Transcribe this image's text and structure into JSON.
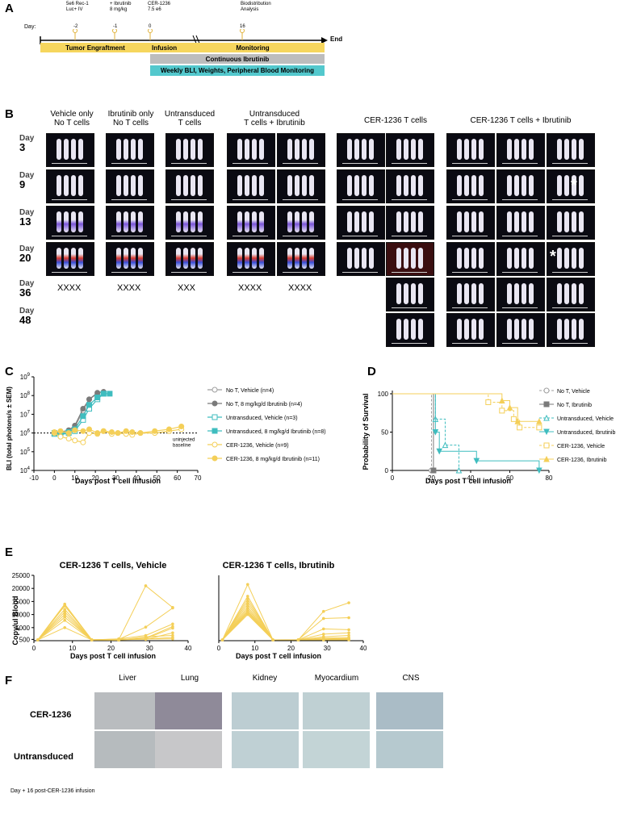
{
  "panels": {
    "a": "A",
    "b": "B",
    "c": "C",
    "d": "D",
    "e": "E",
    "f": "F"
  },
  "timeline": {
    "day_label": "Day:",
    "events": [
      {
        "text": "5e6 Rec-1\nLuc+ IV",
        "day": "-2"
      },
      {
        "text": "+ Ibrutinib\n8 mg/kg",
        "day": "-1"
      },
      {
        "text": "CER-1236\n7.5 e6",
        "day": "0"
      },
      {
        "text": "Biodistribution\nAnalysis",
        "day": "16"
      }
    ],
    "end_label": "End",
    "bars": {
      "engraftment": "Tumor Engraftment",
      "infusion": "Infusion",
      "monitoring": "Monitoring",
      "ibrutinib": "Continuous Ibrutinib",
      "weekly": "Weekly BLI, Weights, Peripheral Blood Monitoring"
    }
  },
  "bli_images": {
    "groups": [
      "Vehicle only\nNo T cells",
      "Ibrutinib only\nNo T cells",
      "Untransduced\nT cells",
      "Untransduced\nT cells + Ibrutinib",
      "CER-1236 T cells",
      "CER-1236 T cells + Ibrutinib"
    ],
    "day_word": "Day",
    "days": [
      "3",
      "9",
      "13",
      "20",
      "36",
      "48"
    ],
    "deaths": [
      "XXXX",
      "XXXX",
      "XXX",
      "XXXX",
      "XXXX"
    ],
    "asterisk": "*"
  },
  "panel_c": {
    "chart_data": {
      "type": "line",
      "xlabel": "Days post T cell infusion",
      "ylabel": "BLI (total photons/s ± SEM)",
      "x_ticks": [
        "-10",
        "0",
        "10",
        "20",
        "30",
        "40",
        "50",
        "60",
        "70"
      ],
      "y_ticks": [
        "10^4",
        "10^5",
        "10^6",
        "10^7",
        "10^8",
        "10^9"
      ],
      "xlim": [
        -10,
        70
      ],
      "ylim_log10": [
        4,
        9
      ],
      "baseline_label": "uninjected\nbaseline",
      "baseline_log10": 6.0,
      "series": [
        {
          "name": "No T, Vehicle (n=4)",
          "color": "#9e9e9e",
          "marker": "circle-open",
          "x": [
            0,
            3,
            7,
            10,
            14,
            17,
            21
          ],
          "y": [
            6.0,
            5.95,
            6.1,
            6.3,
            7.2,
            7.8,
            8.1
          ]
        },
        {
          "name": "No T, 8 mg/kg/d Ibrutinib (n=4)",
          "color": "#7a7a7a",
          "marker": "circle",
          "x": [
            0,
            3,
            7,
            10,
            14,
            17,
            21,
            24
          ],
          "y": [
            6.0,
            6.05,
            6.15,
            6.4,
            7.3,
            7.8,
            8.15,
            8.2
          ]
        },
        {
          "name": "Untransduced, Vehicle (n=3)",
          "color": "#3fbdbf",
          "marker": "square-open",
          "x": [
            0,
            3,
            7,
            10,
            14,
            17,
            21,
            24
          ],
          "y": [
            5.95,
            5.9,
            6.0,
            6.1,
            6.7,
            7.3,
            7.8,
            8.1
          ]
        },
        {
          "name": "Untransduced, 8 mg/kg/d Ibrutinib (n=8)",
          "color": "#3fbdbf",
          "marker": "square",
          "x": [
            0,
            3,
            7,
            10,
            14,
            17,
            21,
            24,
            27
          ],
          "y": [
            6.0,
            5.95,
            6.05,
            6.2,
            6.9,
            7.5,
            7.9,
            8.1,
            8.1
          ]
        },
        {
          "name": "CER-1236, Vehicle (n=9)",
          "color": "#f4cf58",
          "marker": "circle-open",
          "x": [
            0,
            3,
            7,
            10,
            14,
            17,
            21,
            24,
            28,
            31,
            35,
            38,
            42,
            49,
            56,
            62
          ],
          "y": [
            6.0,
            5.8,
            5.7,
            5.6,
            5.5,
            6.0,
            5.95,
            6.1,
            5.95,
            6.0,
            5.95,
            5.9,
            6.0,
            6.0,
            6.1,
            6.2
          ]
        },
        {
          "name": "CER-1236, 8 mg/kg/d Ibrutinib (n=11)",
          "color": "#f4cf58",
          "marker": "circle",
          "x": [
            0,
            3,
            7,
            10,
            14,
            17,
            21,
            24,
            28,
            31,
            35,
            38,
            42,
            49,
            56,
            62
          ],
          "y": [
            6.05,
            6.1,
            6.0,
            6.15,
            6.1,
            6.2,
            6.0,
            6.1,
            6.05,
            6.0,
            6.1,
            6.05,
            6.0,
            6.1,
            6.2,
            6.35
          ]
        }
      ]
    }
  },
  "panel_d": {
    "chart_data": {
      "type": "line",
      "xlabel": "Days post T cell infusion",
      "ylabel": "Probability of Survival",
      "x_ticks": [
        "0",
        "20",
        "40",
        "60",
        "80"
      ],
      "y_ticks": [
        "0",
        "50",
        "100"
      ],
      "xlim": [
        0,
        80
      ],
      "ylim": [
        0,
        100
      ],
      "series": [
        {
          "name": "No T, Vehicle",
          "color": "#9e9e9e",
          "marker": "circle-open",
          "dash": "3,2",
          "x": [
            0,
            20,
            20
          ],
          "y": [
            100,
            100,
            0
          ]
        },
        {
          "name": "No T, Ibrutinib",
          "color": "#7a7a7a",
          "marker": "square",
          "dash": "",
          "x": [
            0,
            21,
            21
          ],
          "y": [
            100,
            100,
            0
          ]
        },
        {
          "name": "Untransduced, Vehicle",
          "color": "#3fbdbf",
          "marker": "triangle-open",
          "dash": "3,2",
          "x": [
            0,
            22,
            22,
            27,
            27,
            34,
            34
          ],
          "y": [
            100,
            100,
            67,
            67,
            33,
            33,
            0
          ]
        },
        {
          "name": "Untransduced, Ibrutinib",
          "color": "#3fbdbf",
          "marker": "triangle-down",
          "dash": "",
          "x": [
            0,
            22,
            22,
            24,
            24,
            43,
            43,
            75,
            75
          ],
          "y": [
            100,
            100,
            50,
            50,
            25,
            25,
            12.5,
            12.5,
            0
          ]
        },
        {
          "name": "CER-1236, Vehicle",
          "color": "#f4cf58",
          "marker": "square-open",
          "dash": "3,2",
          "x": [
            0,
            49,
            49,
            56,
            56,
            62,
            62,
            65,
            65,
            75
          ],
          "y": [
            100,
            100,
            89,
            89,
            78,
            78,
            67,
            67,
            56,
            56
          ]
        },
        {
          "name": "CER-1236, Ibrutinib",
          "color": "#f4cf58",
          "marker": "triangle",
          "dash": "",
          "x": [
            0,
            56,
            56,
            60,
            60,
            64,
            64,
            75
          ],
          "y": [
            100,
            100,
            91,
            91,
            82,
            82,
            64,
            64
          ]
        }
      ]
    }
  },
  "panel_e": {
    "chart_data": [
      {
        "type": "line",
        "title": "CER-1236 T cells, Vehicle",
        "xlabel": "Days post T cell infusion",
        "ylabel": "Copy/ul Blood",
        "x_ticks": [
          "0",
          "10",
          "20",
          "30",
          "40"
        ],
        "y_ticks": [
          "500",
          "5000",
          "10000",
          "15000",
          "20000",
          "25000"
        ],
        "xlim": [
          0,
          40
        ],
        "ylim": [
          0,
          25000
        ],
        "x": [
          1,
          8,
          15,
          22,
          29,
          36
        ],
        "series": [
          {
            "values": [
              300,
              14000,
              400,
              300,
              21000,
              12700
            ]
          },
          {
            "values": [
              300,
              13300,
              350,
              500,
              5200,
              12500
            ]
          },
          {
            "values": [
              300,
              12000,
              300,
              700,
              2000,
              6400
            ]
          },
          {
            "values": [
              300,
              11000,
              300,
              400,
              1000,
              5400
            ]
          },
          {
            "values": [
              300,
              10000,
              250,
              300,
              800,
              4800
            ]
          },
          {
            "values": [
              300,
              9000,
              300,
              600,
              500,
              3000
            ]
          },
          {
            "values": [
              300,
              7800,
              300,
              200,
              1500,
              2000
            ]
          },
          {
            "values": [
              300,
              5000,
              300,
              300,
              600,
              700
            ]
          },
          {
            "values": [
              300,
              13800,
              350,
              400,
              700,
              1200
            ]
          }
        ]
      },
      {
        "type": "line",
        "title": "CER-1236 T cells, Ibrutinib",
        "xlabel": "Days post T cell infusion",
        "ylabel": "",
        "x_ticks": [
          "0",
          "10",
          "20",
          "30",
          "40"
        ],
        "y_ticks": [],
        "xlim": [
          0,
          40
        ],
        "ylim": [
          0,
          25000
        ],
        "x": [
          1,
          8,
          15,
          22,
          29,
          36
        ],
        "series": [
          {
            "values": [
              300,
              21500,
              300,
              300,
              11200,
              14500
            ]
          },
          {
            "values": [
              300,
              17000,
              300,
              400,
              8500,
              8800
            ]
          },
          {
            "values": [
              300,
              16000,
              300,
              300,
              4500,
              4200
            ]
          },
          {
            "values": [
              300,
              15000,
              300,
              300,
              2500,
              3000
            ]
          },
          {
            "values": [
              300,
              14000,
              300,
              300,
              1500,
              2000
            ]
          },
          {
            "values": [
              300,
              13000,
              300,
              300,
              1000,
              1200
            ]
          },
          {
            "values": [
              300,
              12200,
              300,
              300,
              700,
              900
            ]
          },
          {
            "values": [
              300,
              11500,
              300,
              300,
              500,
              700
            ]
          },
          {
            "values": [
              300,
              11000,
              300,
              300,
              400,
              600
            ]
          },
          {
            "values": [
              300,
              10500,
              300,
              300,
              300,
              400
            ]
          },
          {
            "values": [
              300,
              10000,
              300,
              300,
              300,
              300
            ]
          }
        ]
      }
    ]
  },
  "panel_f": {
    "columns": [
      "Liver",
      "Lung",
      "Kidney",
      "Myocardium",
      "CNS"
    ],
    "rows": [
      "CER-1236",
      "Untransduced"
    ],
    "footnote": "Day + 16 post-CER-1236 infusion"
  },
  "colors": {
    "yellow": "#f6d65e",
    "gray": "#bdbdbd",
    "teal": "#53c8cd"
  }
}
